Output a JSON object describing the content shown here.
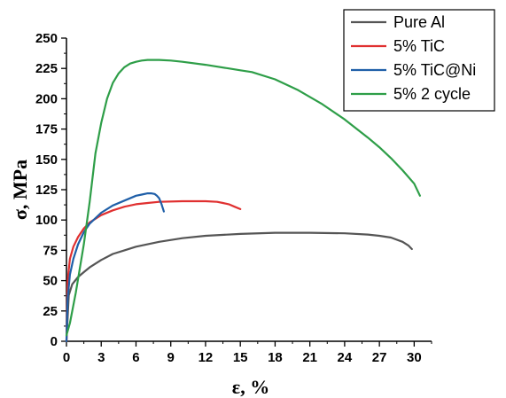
{
  "chart_data": {
    "type": "line",
    "xlabel": "ε, %",
    "ylabel": "σ, MPa",
    "xlim": [
      0,
      31.5
    ],
    "ylim": [
      0,
      250
    ],
    "xticks": [
      0,
      3,
      6,
      9,
      12,
      15,
      18,
      21,
      24,
      27,
      30
    ],
    "yticks": [
      0,
      25,
      50,
      75,
      100,
      125,
      150,
      175,
      200,
      225,
      250
    ],
    "grid": false,
    "legend": "top-right",
    "series": [
      {
        "name": "Pure Al",
        "color": "#555555",
        "x": [
          0,
          0.2,
          0.5,
          1,
          1.5,
          2,
          3,
          4,
          5,
          6,
          8,
          10,
          12,
          15,
          18,
          21,
          24,
          26,
          27,
          28,
          29,
          29.5,
          29.8
        ],
        "y": [
          0,
          38,
          47,
          53,
          57,
          61,
          67,
          72,
          75,
          78,
          82,
          85,
          87,
          88.5,
          89.5,
          89.5,
          89,
          88,
          87,
          85.5,
          82,
          79,
          76
        ]
      },
      {
        "name": "5% TiC",
        "color": "#e03030",
        "x": [
          0,
          0.1,
          0.3,
          0.6,
          1,
          1.5,
          2,
          3,
          4,
          5,
          6,
          7,
          8,
          10,
          12,
          13,
          13.5,
          14,
          14.5,
          15
        ],
        "y": [
          0,
          50,
          68,
          78,
          86,
          93,
          98,
          104,
          108,
          111,
          113,
          114,
          115,
          115.5,
          115.5,
          115,
          114,
          113,
          111,
          109
        ]
      },
      {
        "name": "5% TiC@Ni",
        "color": "#1f5fa8",
        "x": [
          0,
          0.1,
          0.3,
          0.6,
          1,
          1.5,
          2,
          3,
          4,
          5,
          6,
          6.5,
          7,
          7.3,
          7.6,
          7.8,
          8,
          8.2,
          8.4
        ],
        "y": [
          0,
          35,
          55,
          68,
          80,
          90,
          97,
          106,
          112,
          116,
          120,
          121,
          122,
          122,
          121.5,
          120,
          118,
          113,
          107
        ]
      },
      {
        "name": "5% 2 cycle",
        "color": "#2e9e48",
        "x": [
          0,
          0.3,
          0.8,
          1.5,
          2,
          2.5,
          3,
          3.5,
          4,
          4.5,
          5,
          5.5,
          6,
          6.5,
          7,
          8,
          9,
          10,
          12,
          14,
          15,
          16,
          18,
          20,
          22,
          24,
          26,
          27,
          28,
          29,
          30,
          30.5
        ],
        "y": [
          5,
          15,
          40,
          80,
          115,
          155,
          180,
          200,
          213,
          221,
          226,
          229,
          230.5,
          231.5,
          232,
          232,
          231.5,
          230.5,
          228,
          225,
          223.5,
          222,
          216,
          207,
          196,
          183,
          168,
          160,
          151,
          141,
          130,
          120
        ]
      }
    ]
  }
}
